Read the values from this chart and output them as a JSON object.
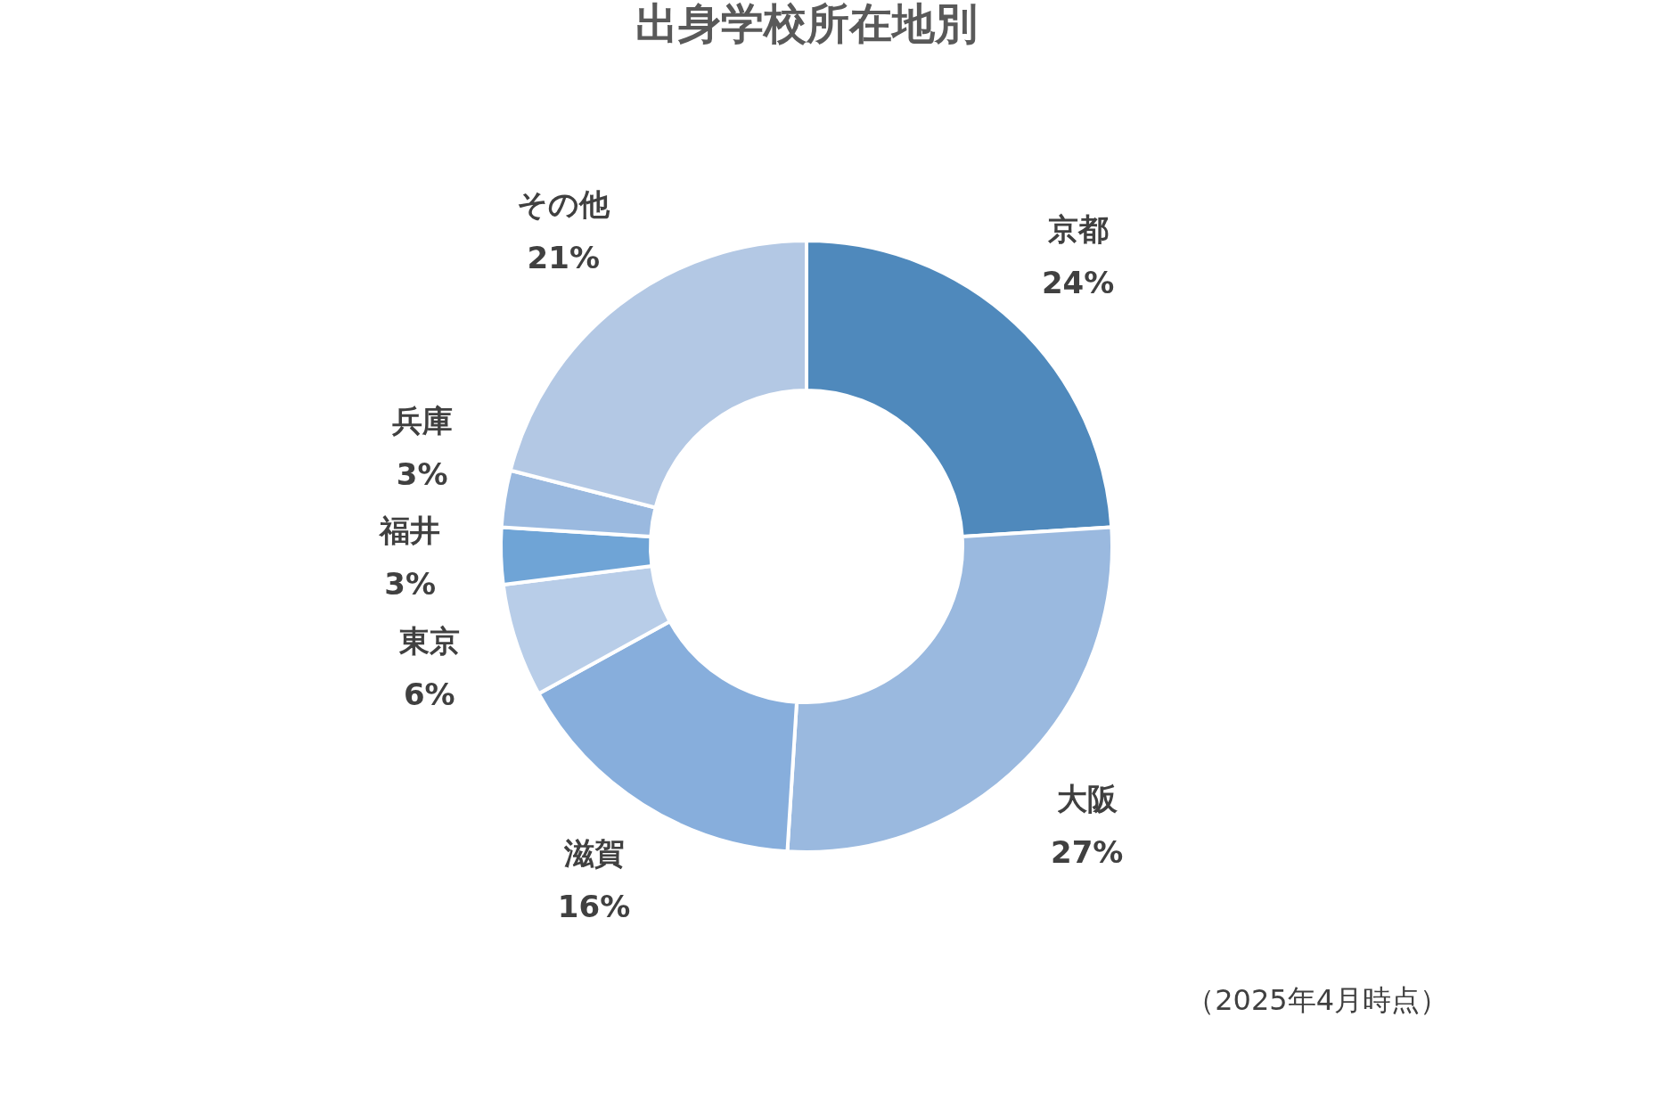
{
  "chart_data": {
    "type": "donut",
    "title": "出身学校所在地別",
    "categories": [
      "京都",
      "大阪",
      "滋賀",
      "東京",
      "福井",
      "兵庫",
      "その他"
    ],
    "values": [
      24,
      27,
      16,
      6,
      3,
      3,
      21
    ],
    "value_labels": [
      "24%",
      "27%",
      "16%",
      "6%",
      "3%",
      "3%",
      "21%"
    ],
    "colors": [
      "#4f89bc",
      "#9ab9df",
      "#87aedc",
      "#b8cde8",
      "#6fa4d6",
      "#9ab9df",
      "#b3c8e4"
    ],
    "annotations": [
      "（2025年4月時点）"
    ],
    "legend": false
  }
}
